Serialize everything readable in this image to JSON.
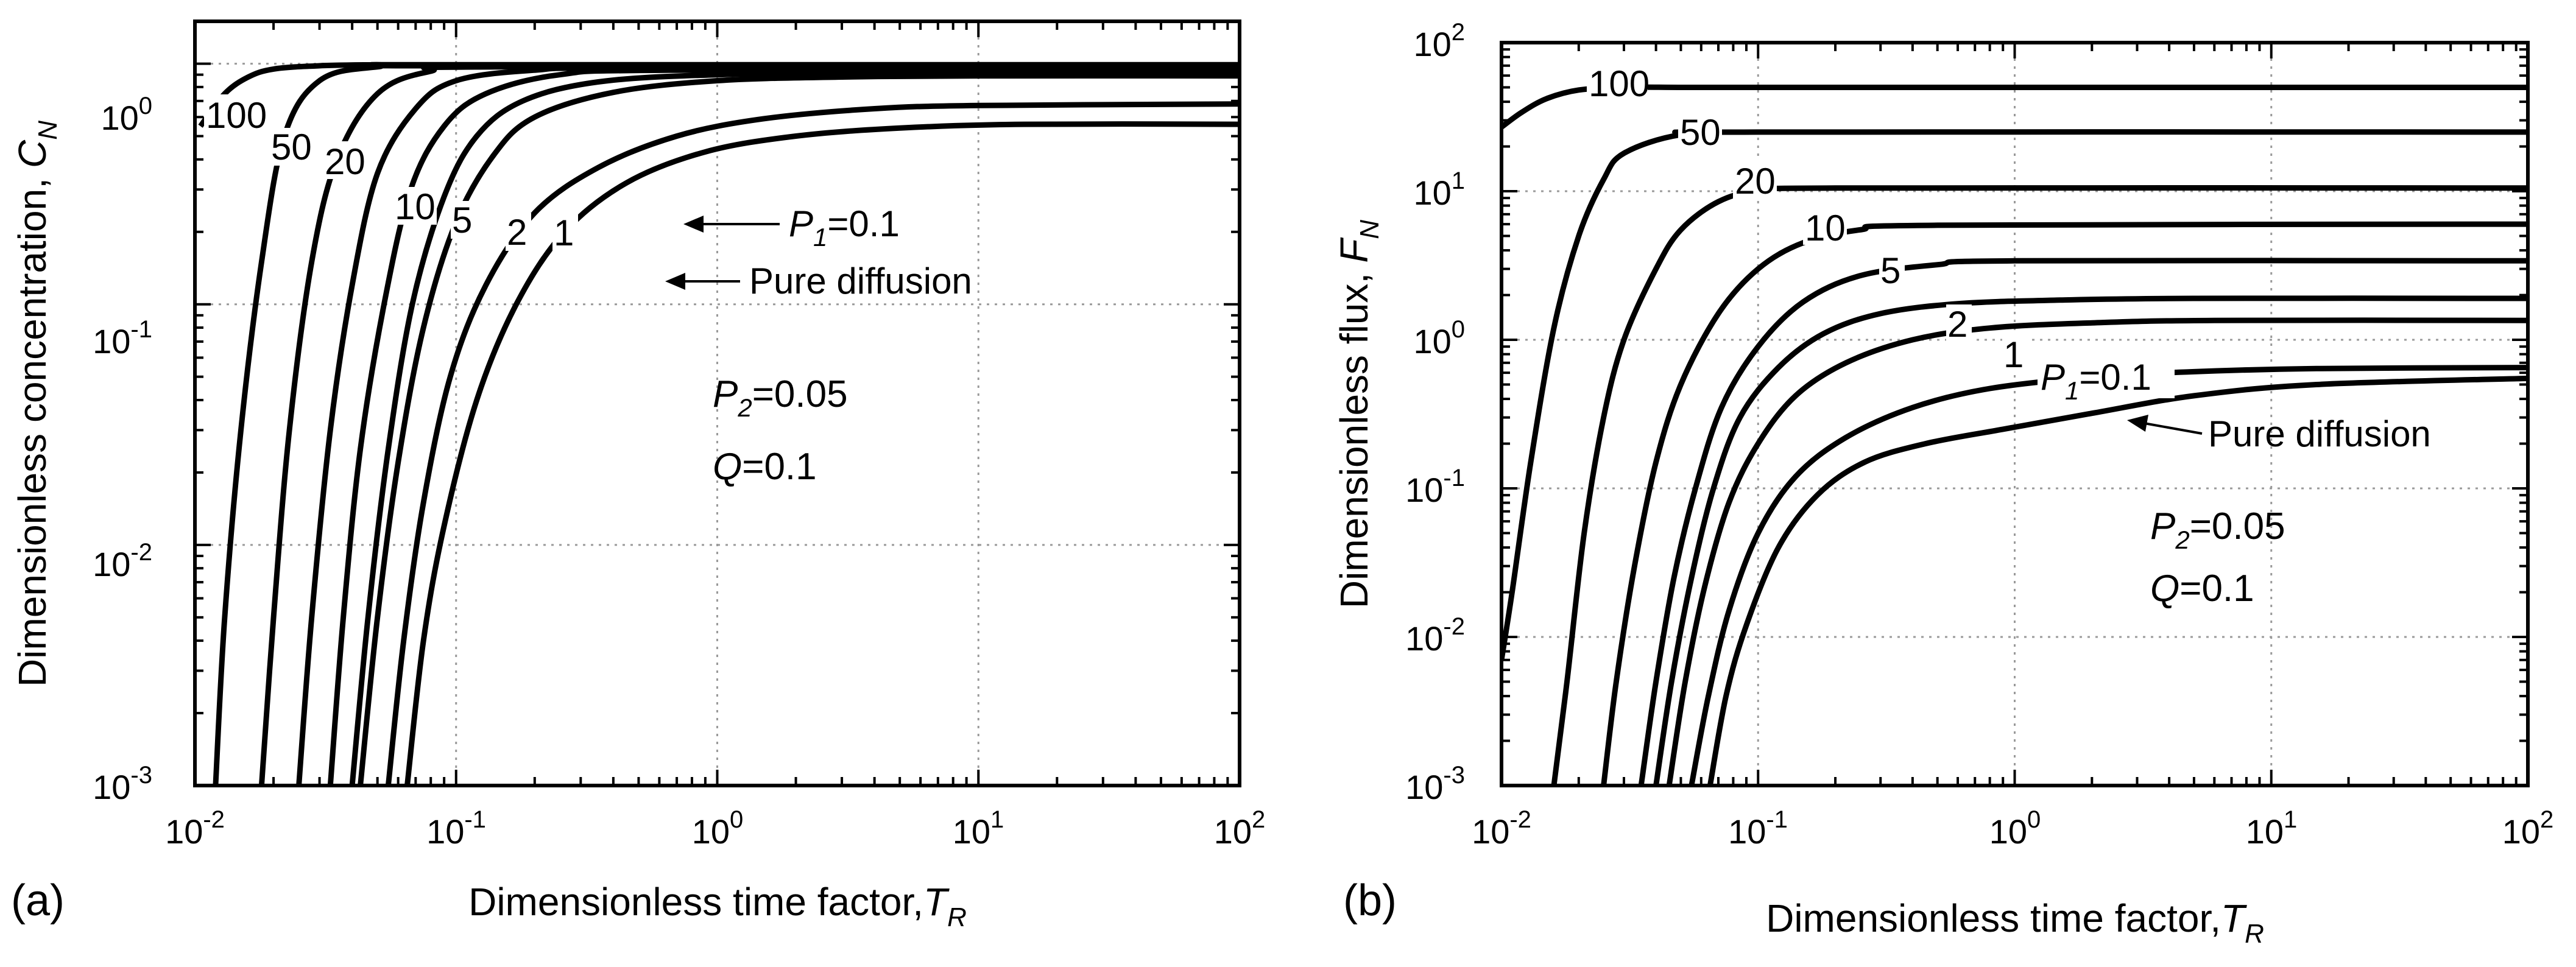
{
  "chart_data": [
    {
      "panel": "(a)",
      "type": "line",
      "xscale": "log",
      "yscale": "log",
      "xlim": [
        0.01,
        100
      ],
      "ylim": [
        0.001,
        1.5
      ],
      "xlabel": "Dimensionless time factor,",
      "xlabel_symbol": "T",
      "xlabel_sub": "R",
      "ylabel": "Dimensionless concentration,",
      "ylabel_symbol": "C",
      "ylabel_sub": "N",
      "xticks": [
        {
          "base": "10",
          "exp": "-2"
        },
        {
          "base": "10",
          "exp": "-1"
        },
        {
          "base": "10",
          "exp": "0"
        },
        {
          "base": "10",
          "exp": "1"
        },
        {
          "base": "10",
          "exp": "2"
        }
      ],
      "yticks": [
        {
          "base": "10",
          "exp": "-3"
        },
        {
          "base": "10",
          "exp": "-2"
        },
        {
          "base": "10",
          "exp": "-1"
        },
        {
          "base": "10",
          "exp": "0"
        }
      ],
      "grid": true,
      "annotations": {
        "p2_symbol": "P",
        "p2_sub": "2",
        "p2_value": "=0.05",
        "q_symbol": "Q",
        "q_value": "=0.1",
        "p1_symbol": "P",
        "p1_sub": "1",
        "p1_value": "=0.1",
        "pure": "Pure diffusion"
      },
      "series": [
        {
          "name": "100",
          "x": [
            0.0105,
            0.013,
            0.016,
            0.02,
            0.03,
            0.05,
            0.1,
            100
          ],
          "y": [
            0.55,
            0.75,
            0.88,
            0.95,
            0.98,
            0.99,
            0.99,
            0.99
          ]
        },
        {
          "name": "50",
          "x": [
            0.012,
            0.013,
            0.015,
            0.018,
            0.022,
            0.03,
            0.05,
            0.1,
            100
          ],
          "y": [
            0.001,
            0.005,
            0.03,
            0.15,
            0.5,
            0.85,
            0.97,
            0.98,
            0.98
          ]
        },
        {
          "name": "20",
          "x": [
            0.018,
            0.02,
            0.023,
            0.028,
            0.035,
            0.05,
            0.08,
            0.15,
            100
          ],
          "y": [
            0.001,
            0.005,
            0.03,
            0.15,
            0.4,
            0.75,
            0.93,
            0.97,
            0.97
          ]
        },
        {
          "name": "10",
          "x": [
            0.025,
            0.028,
            0.033,
            0.04,
            0.05,
            0.07,
            0.1,
            0.2,
            0.5,
            100
          ],
          "y": [
            0.001,
            0.005,
            0.03,
            0.12,
            0.35,
            0.65,
            0.85,
            0.94,
            0.96,
            0.96
          ]
        },
        {
          "name": "5",
          "x": [
            0.033,
            0.037,
            0.043,
            0.053,
            0.067,
            0.09,
            0.13,
            0.25,
            0.7,
            100
          ],
          "y": [
            0.001,
            0.005,
            0.025,
            0.1,
            0.3,
            0.55,
            0.75,
            0.9,
            0.94,
            0.95
          ]
        },
        {
          "name": "2",
          "x": [
            0.04,
            0.046,
            0.055,
            0.068,
            0.09,
            0.12,
            0.18,
            0.35,
            1,
            5,
            100
          ],
          "y": [
            0.001,
            0.005,
            0.025,
            0.1,
            0.28,
            0.5,
            0.7,
            0.84,
            0.9,
            0.92,
            0.92
          ]
        },
        {
          "name": "1",
          "x": [
            0.043,
            0.05,
            0.06,
            0.075,
            0.1,
            0.14,
            0.2,
            0.4,
            1,
            3,
            10,
            100
          ],
          "y": [
            0.001,
            0.005,
            0.022,
            0.08,
            0.22,
            0.42,
            0.6,
            0.76,
            0.85,
            0.88,
            0.89,
            0.89
          ]
        },
        {
          "name": "0.1",
          "x": [
            0.055,
            0.063,
            0.075,
            0.095,
            0.13,
            0.2,
            0.35,
            0.7,
            1.5,
            4,
            10,
            100
          ],
          "y": [
            0.001,
            0.004,
            0.015,
            0.05,
            0.12,
            0.24,
            0.37,
            0.5,
            0.59,
            0.65,
            0.67,
            0.68
          ]
        },
        {
          "name": "Pure diffusion",
          "x": [
            0.065,
            0.075,
            0.09,
            0.12,
            0.17,
            0.26,
            0.45,
            0.9,
            2,
            5,
            15,
            100
          ],
          "y": [
            0.001,
            0.004,
            0.012,
            0.04,
            0.1,
            0.2,
            0.32,
            0.43,
            0.5,
            0.54,
            0.56,
            0.56
          ]
        }
      ]
    },
    {
      "panel": "(b)",
      "type": "line",
      "xscale": "log",
      "yscale": "log",
      "xlim": [
        0.01,
        100
      ],
      "ylim": [
        0.001,
        100
      ],
      "xlabel": "Dimensionless time factor,",
      "xlabel_symbol": "T",
      "xlabel_sub": "R",
      "ylabel": "Dimensionless flux,",
      "ylabel_symbol": "F",
      "ylabel_sub": "N",
      "xticks": [
        {
          "base": "10",
          "exp": "-2"
        },
        {
          "base": "10",
          "exp": "-1"
        },
        {
          "base": "10",
          "exp": "0"
        },
        {
          "base": "10",
          "exp": "1"
        },
        {
          "base": "10",
          "exp": "2"
        }
      ],
      "yticks": [
        {
          "base": "10",
          "exp": "-3"
        },
        {
          "base": "10",
          "exp": "-2"
        },
        {
          "base": "10",
          "exp": "-1"
        },
        {
          "base": "10",
          "exp": "0"
        },
        {
          "base": "10",
          "exp": "1"
        },
        {
          "base": "10",
          "exp": "2"
        }
      ],
      "grid": true,
      "annotations": {
        "p2_symbol": "P",
        "p2_sub": "2",
        "p2_value": "=0.05",
        "q_symbol": "Q",
        "q_value": "=0.1",
        "p1_symbol": "P",
        "p1_sub": "1",
        "p1_value": "=0.1",
        "pure": "Pure diffusion"
      },
      "series": [
        {
          "name": "100",
          "x": [
            0.01,
            0.012,
            0.015,
            0.02,
            0.03,
            0.05,
            0.1,
            100
          ],
          "y": [
            27,
            34,
            42,
            48,
            50,
            50,
            50,
            50
          ]
        },
        {
          "name": "50",
          "x": [
            0.01,
            0.011,
            0.013,
            0.016,
            0.02,
            0.025,
            0.03,
            0.05,
            0.1,
            100
          ],
          "y": [
            0.007,
            0.02,
            0.15,
            1.2,
            5,
            12,
            18,
            24,
            25,
            25
          ]
        },
        {
          "name": "20",
          "x": [
            0.016,
            0.018,
            0.021,
            0.025,
            0.03,
            0.04,
            0.05,
            0.07,
            0.1,
            0.2,
            100
          ],
          "y": [
            0.001,
            0.005,
            0.05,
            0.3,
            1,
            3,
            5.5,
            8.5,
            10,
            10.5,
            10.5
          ]
        },
        {
          "name": "10",
          "x": [
            0.025,
            0.028,
            0.033,
            0.04,
            0.05,
            0.07,
            0.1,
            0.15,
            0.25,
            0.5,
            100
          ],
          "y": [
            0.001,
            0.005,
            0.03,
            0.15,
            0.5,
            1.5,
            3,
            4.5,
            5.5,
            5.9,
            6
          ]
        },
        {
          "name": "5",
          "x": [
            0.035,
            0.04,
            0.047,
            0.057,
            0.072,
            0.1,
            0.15,
            0.25,
            0.5,
            1,
            100
          ],
          "y": [
            0.001,
            0.005,
            0.025,
            0.1,
            0.35,
            0.9,
            1.8,
            2.7,
            3.2,
            3.4,
            3.4
          ]
        },
        {
          "name": "2",
          "x": [
            0.04,
            0.046,
            0.055,
            0.067,
            0.085,
            0.12,
            0.18,
            0.3,
            0.6,
            1.5,
            5,
            100
          ],
          "y": [
            0.001,
            0.005,
            0.025,
            0.1,
            0.3,
            0.65,
            1.1,
            1.5,
            1.75,
            1.85,
            1.9,
            1.9
          ]
        },
        {
          "name": "1",
          "x": [
            0.045,
            0.052,
            0.062,
            0.077,
            0.1,
            0.14,
            0.22,
            0.4,
            0.8,
            2,
            6,
            100
          ],
          "y": [
            0.001,
            0.005,
            0.022,
            0.08,
            0.2,
            0.42,
            0.7,
            1,
            1.2,
            1.3,
            1.35,
            1.35
          ]
        },
        {
          "name": "0.1",
          "x": [
            0.055,
            0.064,
            0.077,
            0.1,
            0.14,
            0.22,
            0.4,
            0.8,
            2,
            5,
            15,
            100
          ],
          "y": [
            0.001,
            0.004,
            0.015,
            0.05,
            0.12,
            0.22,
            0.35,
            0.47,
            0.56,
            0.61,
            0.64,
            0.65
          ]
        },
        {
          "name": "Pure diffusion",
          "x": [
            0.065,
            0.075,
            0.09,
            0.12,
            0.17,
            0.26,
            0.45,
            0.9,
            2,
            5,
            15,
            100
          ],
          "y": [
            0.001,
            0.004,
            0.012,
            0.04,
            0.09,
            0.15,
            0.2,
            0.25,
            0.32,
            0.42,
            0.5,
            0.55
          ]
        }
      ]
    }
  ]
}
